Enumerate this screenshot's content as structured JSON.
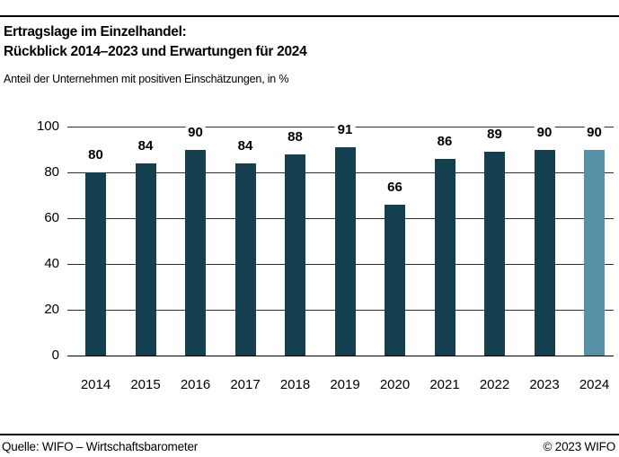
{
  "header": {
    "title_line1": "Ertragslage im Einzelhandel:",
    "title_line2": "Rückblick 2014–2023 und Erwartungen für 2024",
    "subtitle": "Anteil der Unternehmen mit positiven Einschätzungen, in %"
  },
  "chart_data": {
    "type": "bar",
    "title": "Ertragslage im Einzelhandel: Rückblick 2014–2023 und Erwartungen für 2024",
    "subtitle": "Anteil der Unternehmen mit positiven Einschätzungen, in %",
    "categories": [
      "2014",
      "2015",
      "2016",
      "2017",
      "2018",
      "2019",
      "2020",
      "2021",
      "2022",
      "2023",
      "2024"
    ],
    "values": [
      80,
      84,
      90,
      84,
      88,
      91,
      66,
      86,
      89,
      90,
      90
    ],
    "xlabel": "",
    "ylabel": "",
    "ylim": [
      0,
      100
    ],
    "yticks": [
      0,
      20,
      40,
      60,
      80,
      100
    ],
    "grid": true,
    "legend": false,
    "bar_color": "#133F4F",
    "highlight_color": "#5791A5",
    "highlight_category": "2024",
    "value_labels": true
  },
  "footer": {
    "source": "Quelle: WIFO – Wirtschaftsbarometer",
    "copyright": "© 2023 WIFO"
  }
}
